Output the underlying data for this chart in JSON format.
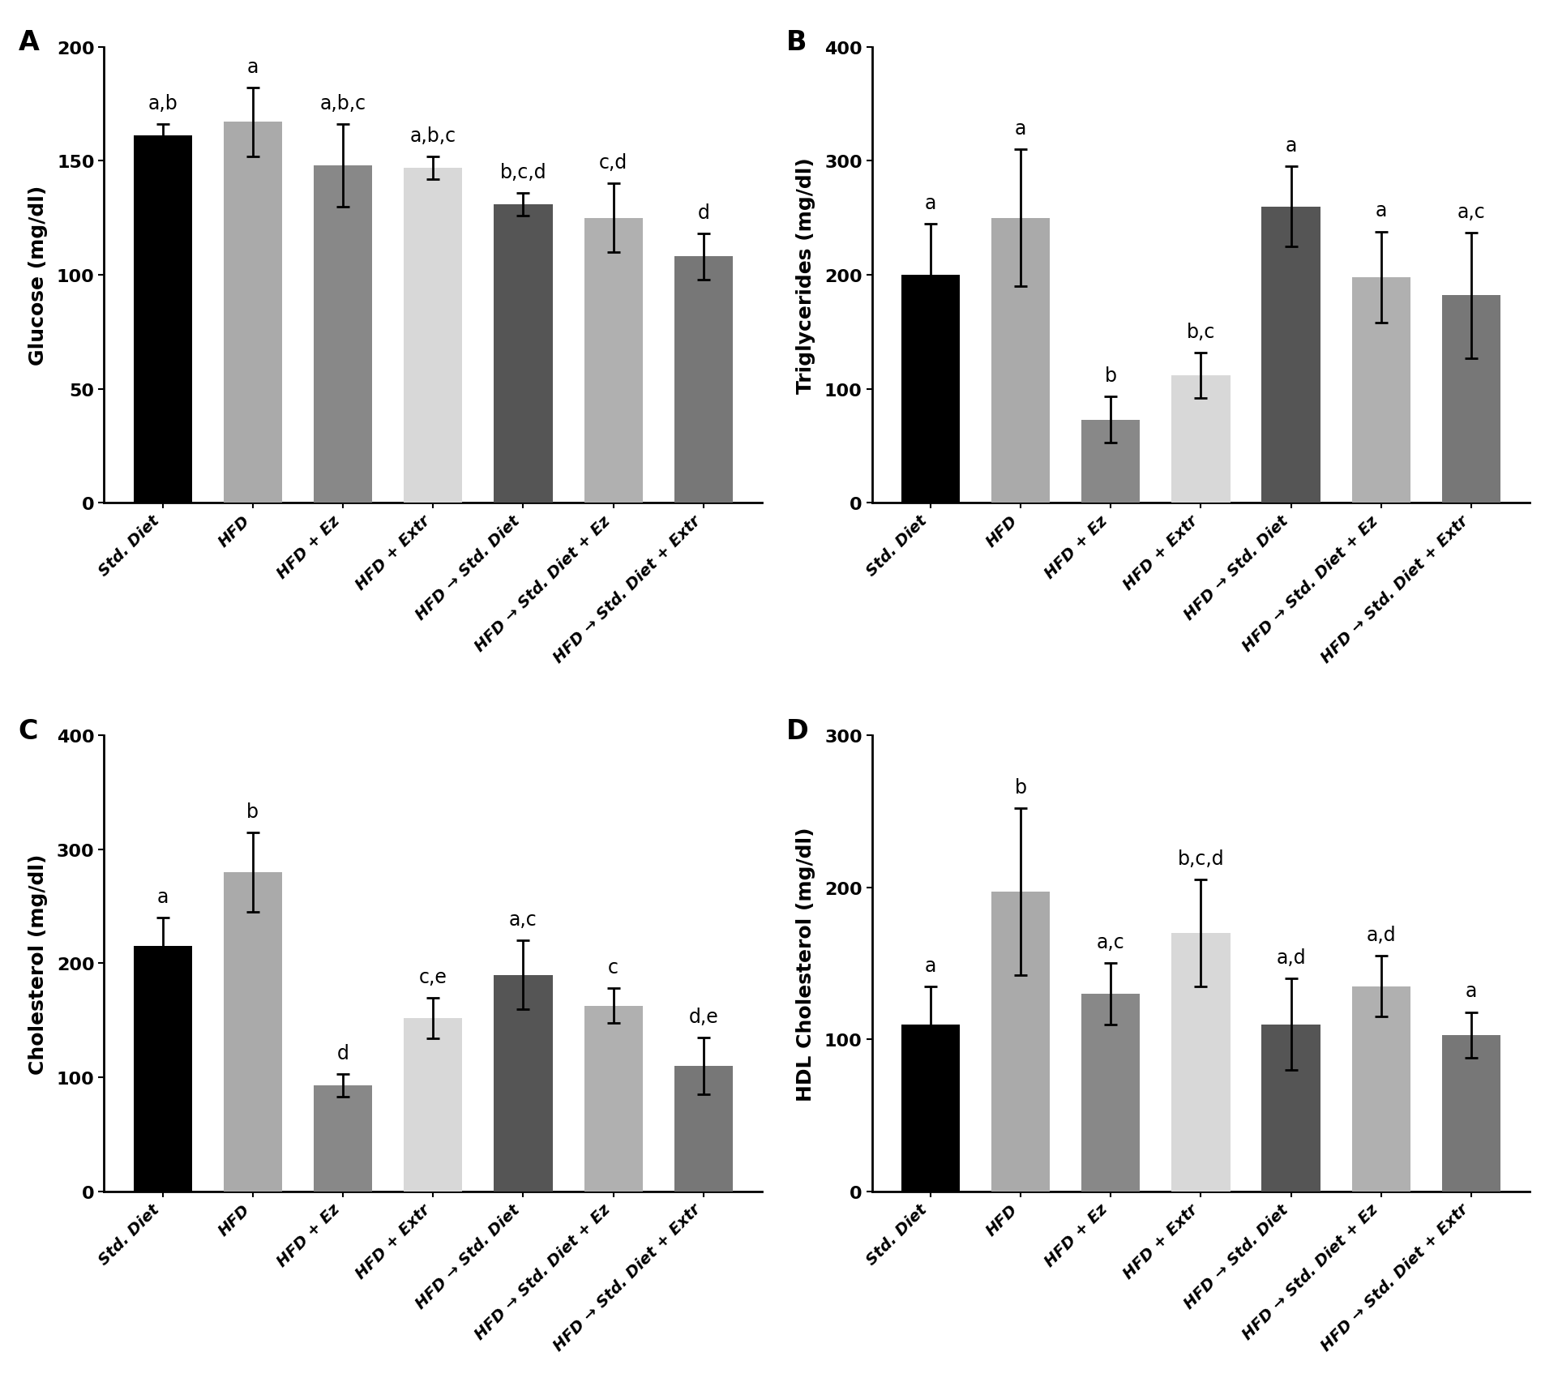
{
  "panels": [
    {
      "label": "A",
      "ylabel": "Glucose (mg/dl)",
      "ylim": [
        0,
        200
      ],
      "yticks": [
        0,
        50,
        100,
        150,
        200
      ],
      "values": [
        161,
        167,
        148,
        147,
        131,
        125,
        108
      ],
      "errors": [
        5,
        15,
        18,
        5,
        5,
        15,
        10
      ],
      "sig_labels": [
        "a,b",
        "a",
        "a,b,c",
        "a,b,c",
        "b,c,d",
        "c,d",
        "d"
      ]
    },
    {
      "label": "B",
      "ylabel": "Triglycerides (mg/dl)",
      "ylim": [
        0,
        400
      ],
      "yticks": [
        0,
        100,
        200,
        300,
        400
      ],
      "values": [
        200,
        250,
        73,
        112,
        260,
        198,
        182
      ],
      "errors": [
        45,
        60,
        20,
        20,
        35,
        40,
        55
      ],
      "sig_labels": [
        "a",
        "a",
        "b",
        "b,c",
        "a",
        "a",
        "a,c"
      ]
    },
    {
      "label": "C",
      "ylabel": "Cholesterol (mg/dl)",
      "ylim": [
        0,
        400
      ],
      "yticks": [
        0,
        100,
        200,
        300,
        400
      ],
      "values": [
        215,
        280,
        93,
        152,
        190,
        163,
        110
      ],
      "errors": [
        25,
        35,
        10,
        18,
        30,
        15,
        25
      ],
      "sig_labels": [
        "a",
        "b",
        "d",
        "c,e",
        "a,c",
        "c",
        "d,e"
      ]
    },
    {
      "label": "D",
      "ylabel": "HDL Cholesterol (mg/dl)",
      "ylim": [
        0,
        300
      ],
      "yticks": [
        0,
        100,
        200,
        300
      ],
      "values": [
        110,
        197,
        130,
        170,
        110,
        135,
        103
      ],
      "errors": [
        25,
        55,
        20,
        35,
        30,
        20,
        15
      ],
      "sig_labels": [
        "a",
        "b",
        "a,c",
        "b,c,d",
        "a,d",
        "a,d",
        "a"
      ]
    }
  ],
  "categories": [
    "Std. Diet",
    "HFD",
    "HFD + Ez",
    "HFD + Extr",
    "HFD → Std. Diet",
    "HFD → Std. Diet + Ez",
    "HFD → Std. Diet + Extr"
  ],
  "bar_colors": [
    "#000000",
    "#aaaaaa",
    "#888888",
    "#d8d8d8",
    "#555555",
    "#b0b0b0",
    "#777777"
  ],
  "background_color": "#ffffff",
  "panel_label_fontsize": 24,
  "ylabel_fontsize": 18,
  "tick_fontsize": 16,
  "sig_fontsize": 17,
  "xtick_fontsize": 14
}
